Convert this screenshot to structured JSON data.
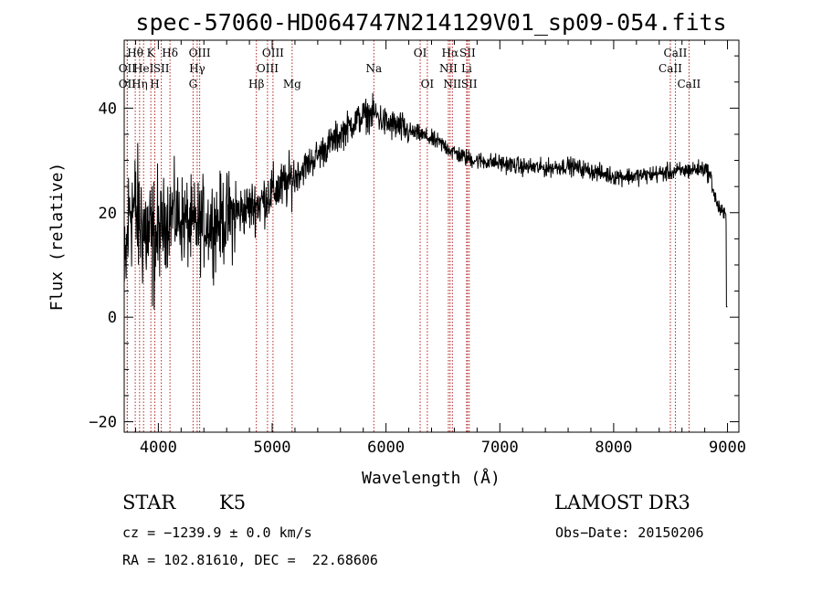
{
  "chart_data": {
    "type": "line",
    "title": "spec-57060-HD064747N214129V01_sp09-054.fits",
    "xlabel": "Wavelength (Å)",
    "ylabel": "Flux (relative)",
    "xlim": [
      3700,
      9100
    ],
    "ylim": [
      -22,
      53
    ],
    "xticks": [
      4000,
      5000,
      6000,
      7000,
      8000,
      9000
    ],
    "yticks": [
      -20,
      0,
      20,
      40
    ],
    "spectrum_anchors": [
      {
        "x": 3700,
        "y": 5
      },
      {
        "x": 3750,
        "y": 22
      },
      {
        "x": 3800,
        "y": 20
      },
      {
        "x": 3850,
        "y": 18
      },
      {
        "x": 3900,
        "y": 16
      },
      {
        "x": 3950,
        "y": 14
      },
      {
        "x": 4000,
        "y": 16
      },
      {
        "x": 4100,
        "y": 20
      },
      {
        "x": 4200,
        "y": 19
      },
      {
        "x": 4300,
        "y": 17
      },
      {
        "x": 4400,
        "y": 18
      },
      {
        "x": 4500,
        "y": 18
      },
      {
        "x": 4600,
        "y": 19
      },
      {
        "x": 4700,
        "y": 20
      },
      {
        "x": 4800,
        "y": 21
      },
      {
        "x": 4900,
        "y": 22
      },
      {
        "x": 5000,
        "y": 24
      },
      {
        "x": 5100,
        "y": 25
      },
      {
        "x": 5200,
        "y": 27
      },
      {
        "x": 5300,
        "y": 29
      },
      {
        "x": 5400,
        "y": 31
      },
      {
        "x": 5500,
        "y": 33
      },
      {
        "x": 5600,
        "y": 35
      },
      {
        "x": 5700,
        "y": 37
      },
      {
        "x": 5800,
        "y": 38.5
      },
      {
        "x": 5900,
        "y": 39
      },
      {
        "x": 6000,
        "y": 37
      },
      {
        "x": 6100,
        "y": 36.5
      },
      {
        "x": 6200,
        "y": 35.5
      },
      {
        "x": 6300,
        "y": 35
      },
      {
        "x": 6400,
        "y": 34
      },
      {
        "x": 6500,
        "y": 33
      },
      {
        "x": 6600,
        "y": 31.5
      },
      {
        "x": 6700,
        "y": 30.5
      },
      {
        "x": 6800,
        "y": 30
      },
      {
        "x": 7000,
        "y": 29.5
      },
      {
        "x": 7200,
        "y": 28.8
      },
      {
        "x": 7400,
        "y": 28.5
      },
      {
        "x": 7600,
        "y": 29
      },
      {
        "x": 7800,
        "y": 28
      },
      {
        "x": 8000,
        "y": 27
      },
      {
        "x": 8200,
        "y": 27
      },
      {
        "x": 8400,
        "y": 27.5
      },
      {
        "x": 8600,
        "y": 28
      },
      {
        "x": 8800,
        "y": 28.5
      },
      {
        "x": 8850,
        "y": 27
      },
      {
        "x": 8900,
        "y": 22
      },
      {
        "x": 8950,
        "y": 20
      },
      {
        "x": 9000,
        "y": 19
      }
    ],
    "spectral_lines": [
      {
        "wave": 3727,
        "label": "OII",
        "row": 2
      },
      {
        "wave": 3727,
        "label": "OII",
        "row": 3
      },
      {
        "wave": 3797,
        "label": "Hθ",
        "row": 1
      },
      {
        "wave": 3835,
        "label": "Hη",
        "row": 3
      },
      {
        "wave": 3870,
        "label": "HeI",
        "row": 2
      },
      {
        "wave": 3934,
        "label": "K",
        "row": 1
      },
      {
        "wave": 3969,
        "label": "H",
        "row": 3
      },
      {
        "wave": 4026,
        "label": "SII",
        "row": 2
      },
      {
        "wave": 4102,
        "label": "Hδ",
        "row": 1
      },
      {
        "wave": 4305,
        "label": "G",
        "row": 3
      },
      {
        "wave": 4341,
        "label": "Hγ",
        "row": 2
      },
      {
        "wave": 4363,
        "label": "OIII",
        "row": 1
      },
      {
        "wave": 4861,
        "label": "Hβ",
        "row": 3
      },
      {
        "wave": 4959,
        "label": "OIII",
        "row": 2
      },
      {
        "wave": 5007,
        "label": "OIII",
        "row": 1
      },
      {
        "wave": 5175,
        "label": "Mg",
        "row": 3
      },
      {
        "wave": 5893,
        "label": "Na",
        "row": 2
      },
      {
        "wave": 6300,
        "label": "OI",
        "row": 1
      },
      {
        "wave": 6363,
        "label": "OI",
        "row": 3
      },
      {
        "wave": 6548,
        "label": "NII",
        "row": 2
      },
      {
        "wave": 6563,
        "label": "Hα",
        "row": 1
      },
      {
        "wave": 6583,
        "label": "NII",
        "row": 3
      },
      {
        "wave": 6708,
        "label": "Li",
        "row": 2
      },
      {
        "wave": 6716,
        "label": "SII",
        "row": 1
      },
      {
        "wave": 6731,
        "label": "SII",
        "row": 3
      },
      {
        "wave": 8498,
        "label": "CaII",
        "row": 2
      },
      {
        "wave": 8542,
        "label": "CaII",
        "row": 1
      },
      {
        "wave": 8662,
        "label": "CaII",
        "row": 3
      }
    ]
  },
  "info": {
    "object_class": "STAR",
    "subclass": "K5",
    "survey": "LAMOST DR3",
    "redshift": "cz = −1239.9 ± 0.0 km/s",
    "obs_date": "Obs−Date: 20150206",
    "coords": "RA = 102.81610, DEC =  22.68606"
  },
  "colors": {
    "line": "#000000",
    "marker": "#b22222"
  }
}
